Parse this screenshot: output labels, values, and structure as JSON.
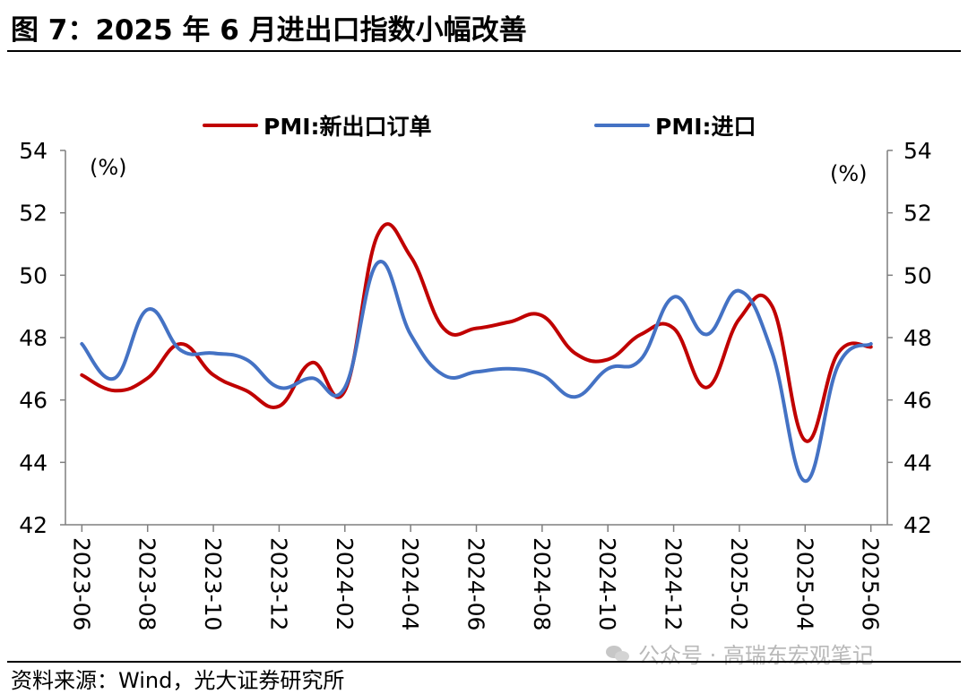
{
  "title": "图 7：2025 年 6 月进出口指数小幅改善",
  "source": "资料来源：Wind，光大证券研究所",
  "watermark": "公众号 · 高瑞东宏观笔记",
  "watermark_icon": "wechat-icon",
  "colors": {
    "series1": "#C00000",
    "series2": "#4472C4",
    "axis": "#7f7f7f"
  },
  "chart_data": {
    "type": "line",
    "legend_position": "top",
    "grid": false,
    "ylabel_left": "(%)",
    "ylabel_right": "(%)",
    "ylim": [
      42,
      54
    ],
    "yticks": [
      "42",
      "44",
      "46",
      "48",
      "50",
      "52",
      "54"
    ],
    "x": [
      "2023-06",
      "2023-07",
      "2023-08",
      "2023-09",
      "2023-10",
      "2023-11",
      "2023-12",
      "2024-01",
      "2024-02",
      "2024-03",
      "2024-04",
      "2024-05",
      "2024-06",
      "2024-07",
      "2024-08",
      "2024-09",
      "2024-10",
      "2024-11",
      "2024-12",
      "2025-01",
      "2025-02",
      "2025-03",
      "2025-04",
      "2025-05",
      "2025-06"
    ],
    "xtick_labels": [
      "2023-06",
      "2023-08",
      "2023-10",
      "2023-12",
      "2024-02",
      "2024-04",
      "2024-06",
      "2024-08",
      "2024-10",
      "2024-12",
      "2025-02",
      "2025-04",
      "2025-06"
    ],
    "series": [
      {
        "name": "PMI:新出口订单",
        "color": "#C00000",
        "values": [
          46.8,
          46.3,
          46.7,
          47.8,
          46.8,
          46.3,
          45.8,
          47.2,
          46.3,
          51.3,
          50.6,
          48.3,
          48.3,
          48.5,
          48.7,
          47.5,
          47.3,
          48.1,
          48.3,
          46.4,
          48.6,
          49.0,
          44.7,
          47.5,
          47.7
        ]
      },
      {
        "name": "PMI:进口",
        "color": "#4472C4",
        "values": [
          47.8,
          46.7,
          48.9,
          47.6,
          47.5,
          47.3,
          46.4,
          46.7,
          46.4,
          50.4,
          48.1,
          46.8,
          46.9,
          47.0,
          46.8,
          46.1,
          47.0,
          47.3,
          49.3,
          48.1,
          49.5,
          47.5,
          43.4,
          47.1,
          47.8
        ]
      }
    ]
  }
}
